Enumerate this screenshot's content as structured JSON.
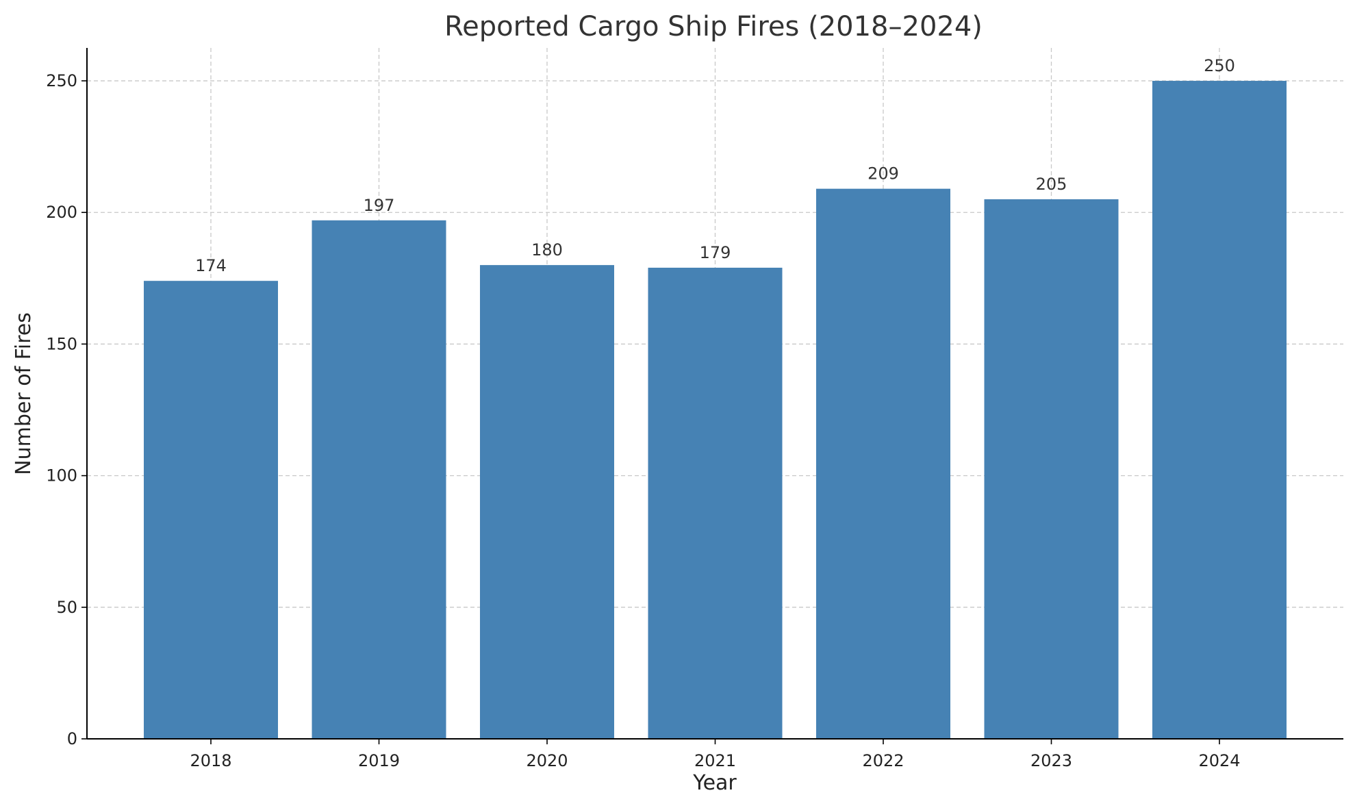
{
  "chart_data": {
    "type": "bar",
    "title": "Reported Cargo Ship Fires (2018–2024)",
    "xlabel": "Year",
    "ylabel": "Number of Fires",
    "categories": [
      "2018",
      "2019",
      "2020",
      "2021",
      "2022",
      "2023",
      "2024"
    ],
    "values": [
      174,
      197,
      180,
      179,
      209,
      205,
      250
    ],
    "ylim": [
      0,
      262.5
    ],
    "yticks": [
      0,
      50,
      100,
      150,
      200,
      250
    ],
    "grid": true,
    "bar_color": "#4682b4",
    "data_labels": true
  }
}
